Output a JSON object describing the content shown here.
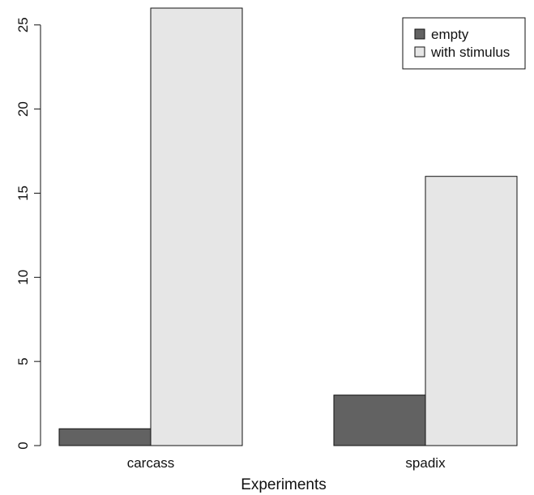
{
  "chart_data": {
    "type": "bar",
    "categories": [
      "carcass",
      "spadix"
    ],
    "series": [
      {
        "name": "empty",
        "values": [
          1,
          3
        ],
        "color": "#626262"
      },
      {
        "name": "with stimulus",
        "values": [
          26,
          16
        ],
        "color": "#e6e6e6"
      }
    ],
    "title": "",
    "xlabel": "Experiments",
    "ylabel": "",
    "ylim": [
      0,
      26
    ],
    "yticks": [
      0,
      5,
      10,
      15,
      20,
      25
    ],
    "grid": false,
    "legend_position": "top-right"
  }
}
